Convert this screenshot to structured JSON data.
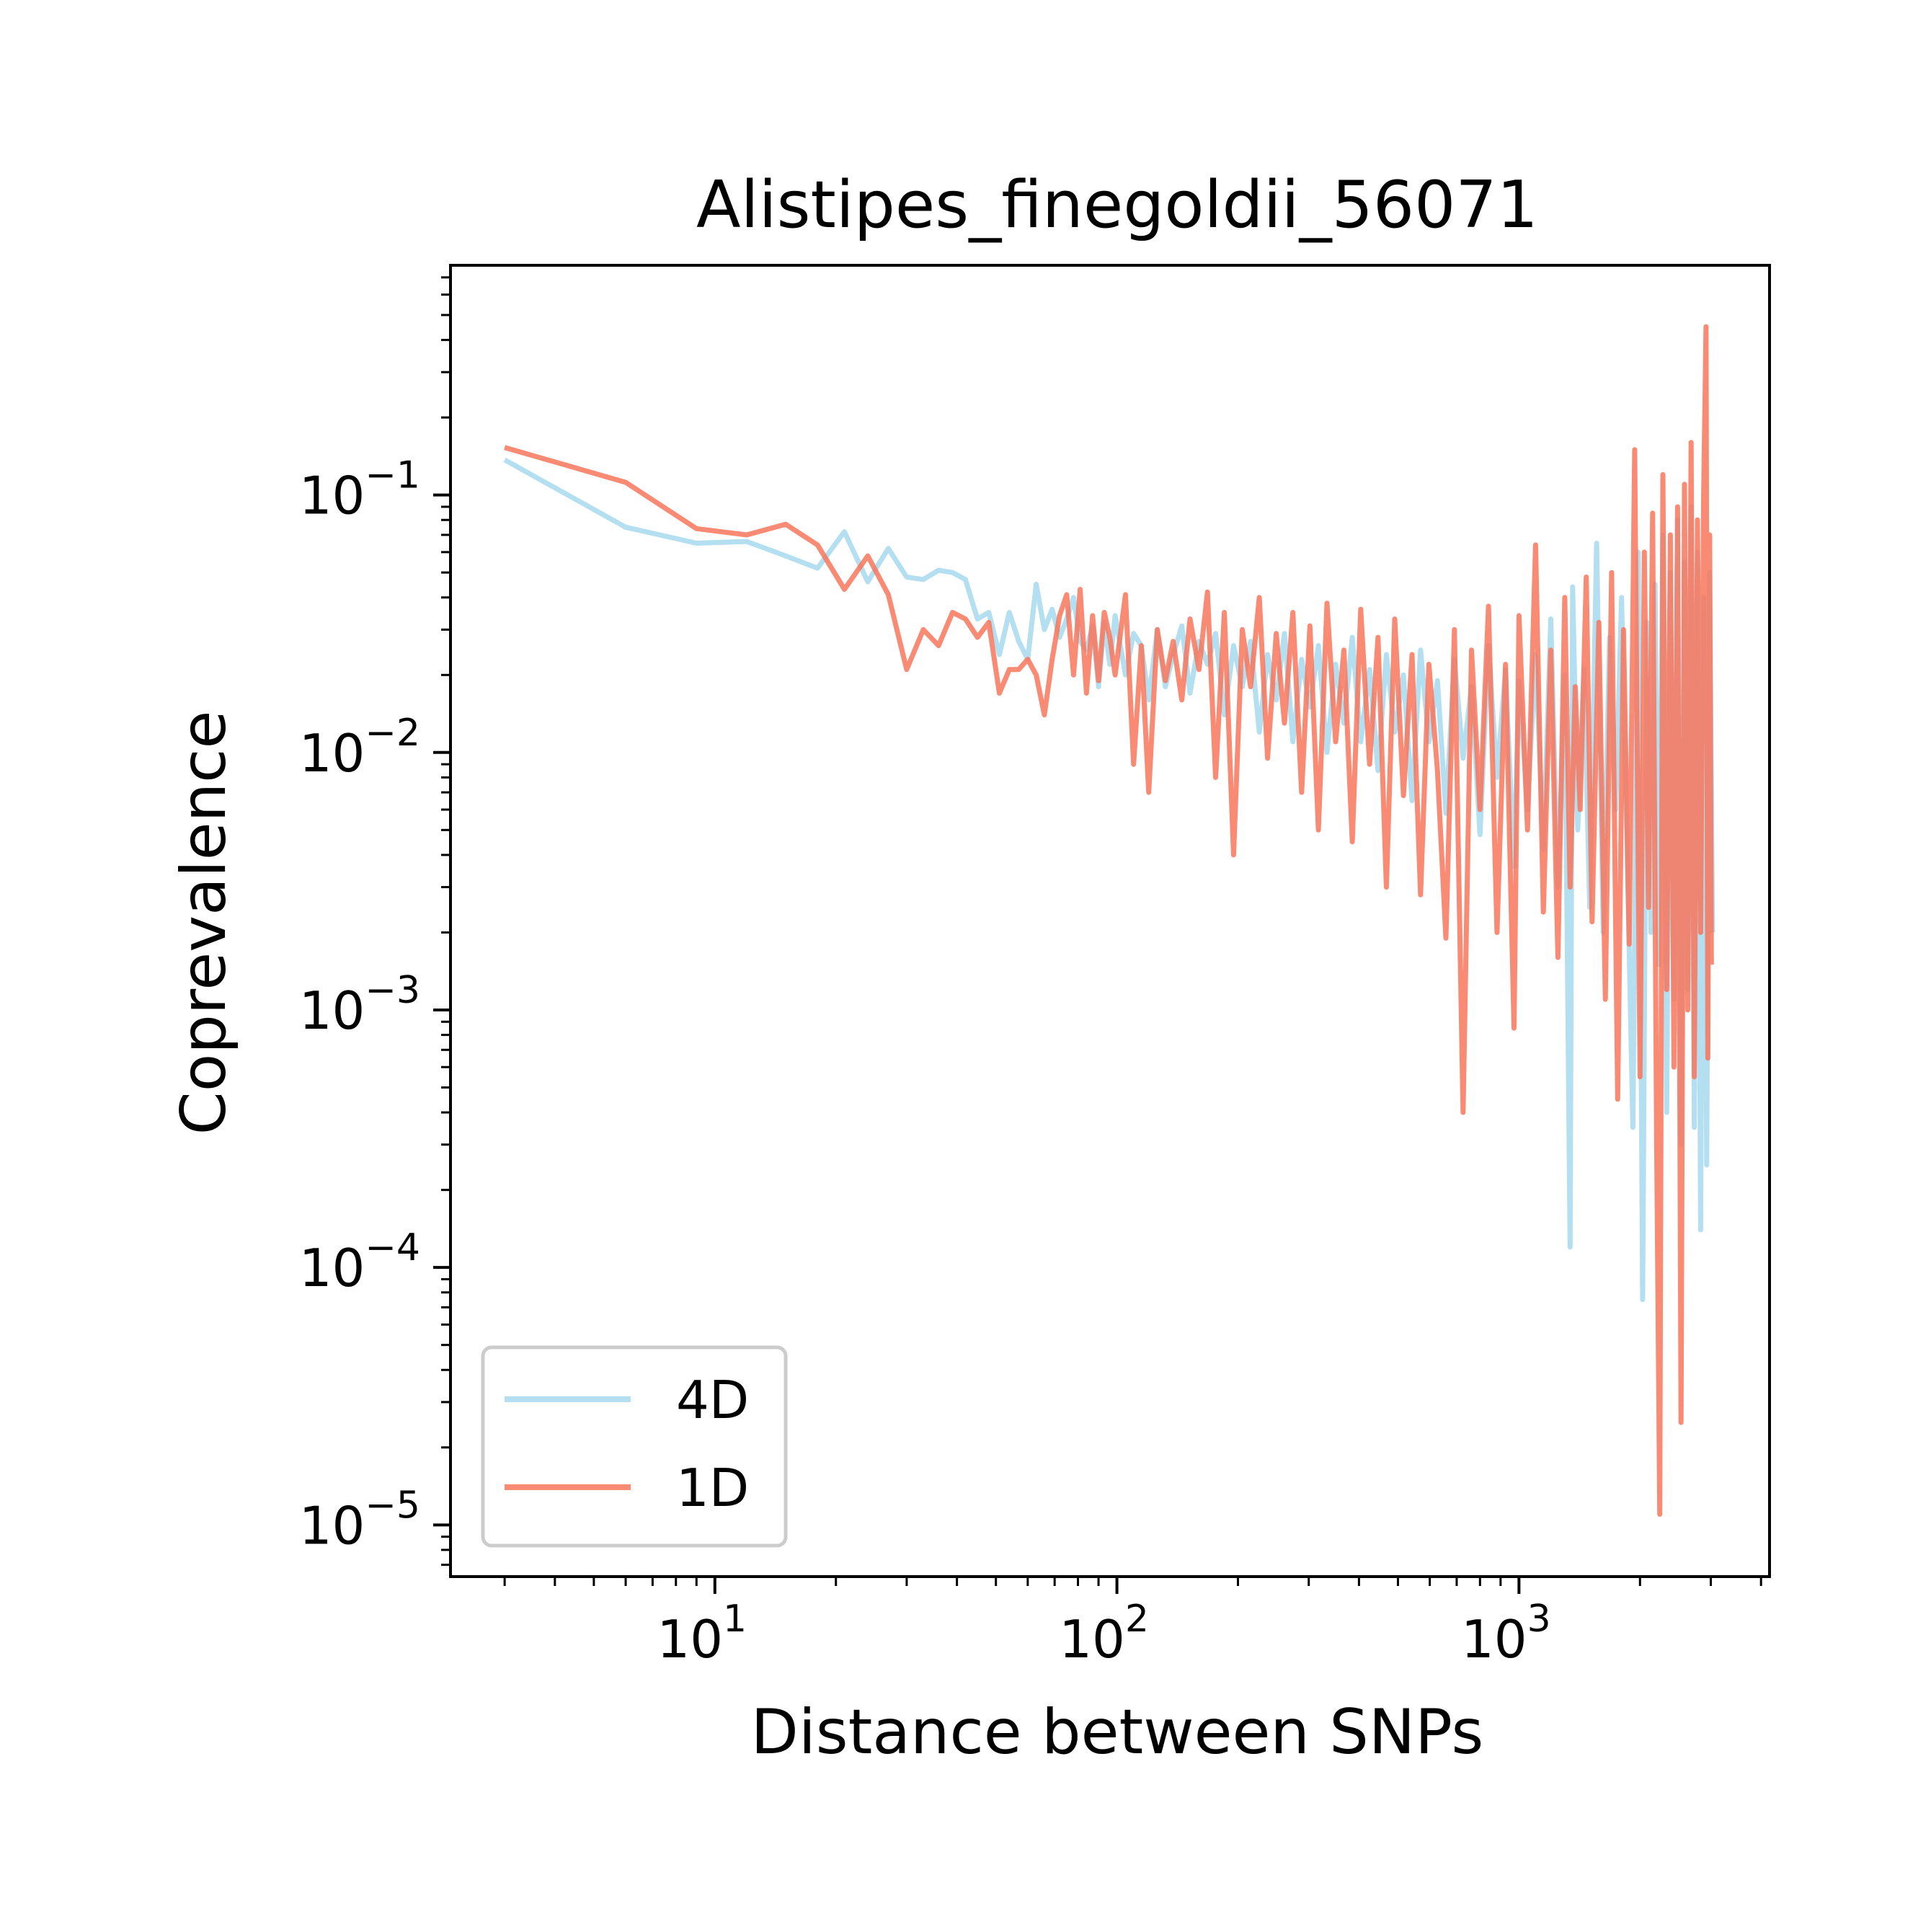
{
  "chart_data": {
    "type": "line",
    "title": "Alistipes_finegoldii_56071",
    "xlabel": "Distance between SNPs",
    "ylabel": "Coprevalence",
    "xscale": "log",
    "yscale": "log",
    "xlim": [
      2.2,
      4200
    ],
    "ylim": [
      6.3e-06,
      0.78
    ],
    "grid": false,
    "legend_position": "lower-left",
    "x_ticks": [
      {
        "value": 10,
        "base": "10",
        "exp": "1"
      },
      {
        "value": 100,
        "base": "10",
        "exp": "2"
      },
      {
        "value": 1000,
        "base": "10",
        "exp": "3"
      }
    ],
    "y_ticks": [
      {
        "value": 0.1,
        "base": "10",
        "exp": "−1"
      },
      {
        "value": 0.01,
        "base": "10",
        "exp": "−2"
      },
      {
        "value": 0.001,
        "base": "10",
        "exp": "−3"
      },
      {
        "value": 0.0001,
        "base": "10",
        "exp": "−4"
      },
      {
        "value": 1e-05,
        "base": "10",
        "exp": "−5"
      }
    ],
    "series": [
      {
        "name": "4D",
        "color": "#a6d9ee",
        "points": [
          [
            3,
            0.137
          ],
          [
            6,
            0.075
          ],
          [
            9,
            0.065
          ],
          [
            12,
            0.066
          ],
          [
            15,
            0.058
          ],
          [
            18,
            0.052
          ],
          [
            21,
            0.072
          ],
          [
            24,
            0.046
          ],
          [
            27,
            0.062
          ],
          [
            30,
            0.048
          ],
          [
            33,
            0.047
          ],
          [
            36,
            0.051
          ],
          [
            39,
            0.05
          ],
          [
            42,
            0.047
          ],
          [
            45,
            0.033
          ],
          [
            48,
            0.035
          ],
          [
            51,
            0.024
          ],
          [
            54,
            0.035
          ],
          [
            57,
            0.027
          ],
          [
            60,
            0.023
          ],
          [
            63,
            0.045
          ],
          [
            66,
            0.03
          ],
          [
            69,
            0.036
          ],
          [
            72,
            0.028
          ],
          [
            75,
            0.033
          ],
          [
            78,
            0.04
          ],
          [
            81,
            0.027
          ],
          [
            84,
            0.025
          ],
          [
            87,
            0.031
          ],
          [
            90,
            0.018
          ],
          [
            93,
            0.032
          ],
          [
            96,
            0.022
          ],
          [
            99,
            0.034
          ],
          [
            105,
            0.02
          ],
          [
            110,
            0.029
          ],
          [
            115,
            0.026
          ],
          [
            120,
            0.016
          ],
          [
            126,
            0.03
          ],
          [
            132,
            0.018
          ],
          [
            138,
            0.024
          ],
          [
            145,
            0.031
          ],
          [
            152,
            0.017
          ],
          [
            160,
            0.027
          ],
          [
            168,
            0.022
          ],
          [
            176,
            0.029
          ],
          [
            185,
            0.014
          ],
          [
            195,
            0.026
          ],
          [
            205,
            0.018
          ],
          [
            215,
            0.027
          ],
          [
            226,
            0.012
          ],
          [
            237,
            0.024
          ],
          [
            249,
            0.016
          ],
          [
            261,
            0.029
          ],
          [
            274,
            0.011
          ],
          [
            288,
            0.023
          ],
          [
            302,
            0.015
          ],
          [
            317,
            0.026
          ],
          [
            333,
            0.01
          ],
          [
            350,
            0.022
          ],
          [
            367,
            0.013
          ],
          [
            385,
            0.028
          ],
          [
            404,
            0.011
          ],
          [
            425,
            0.021
          ],
          [
            446,
            0.0085
          ],
          [
            468,
            0.024
          ],
          [
            491,
            0.012
          ],
          [
            516,
            0.02
          ],
          [
            542,
            0.0065
          ],
          [
            569,
            0.025
          ],
          [
            597,
            0.011
          ],
          [
            627,
            0.019
          ],
          [
            658,
            0.0058
          ],
          [
            691,
            0.023
          ],
          [
            726,
            0.0095
          ],
          [
            762,
            0.018
          ],
          [
            800,
            0.0048
          ],
          [
            840,
            0.026
          ],
          [
            882,
            0.008
          ],
          [
            926,
            0.021
          ],
          [
            972,
            0.0036
          ],
          [
            1000,
            0.019
          ],
          [
            1050,
            0.006
          ],
          [
            1100,
            0.024
          ],
          [
            1150,
            0.0042
          ],
          [
            1200,
            0.033
          ],
          [
            1250,
            0.003
          ],
          [
            1300,
            0.02
          ],
          [
            1340,
            0.00012
          ],
          [
            1360,
            0.044
          ],
          [
            1400,
            0.005
          ],
          [
            1450,
            0.021
          ],
          [
            1500,
            0.0025
          ],
          [
            1560,
            0.065
          ],
          [
            1620,
            0.002
          ],
          [
            1680,
            0.028
          ],
          [
            1740,
            0.006
          ],
          [
            1800,
            0.04
          ],
          [
            1860,
            0.0038
          ],
          [
            1920,
            0.00035
          ],
          [
            1980,
            0.06
          ],
          [
            2030,
            7.5e-05
          ],
          [
            2080,
            0.032
          ],
          [
            2130,
            0.002
          ],
          [
            2180,
            0.045
          ],
          [
            2230,
            0.0015
          ],
          [
            2280,
            0.07
          ],
          [
            2330,
            0.0004
          ],
          [
            2380,
            0.05
          ],
          [
            2430,
            0.0011
          ],
          [
            2480,
            0.08
          ],
          [
            2530,
            0.0003
          ],
          [
            2580,
            0.055
          ],
          [
            2630,
            0.0012
          ],
          [
            2680,
            0.09
          ],
          [
            2730,
            0.00035
          ],
          [
            2780,
            0.06
          ],
          [
            2830,
            0.00014
          ],
          [
            2880,
            0.04
          ],
          [
            2930,
            0.00025
          ],
          [
            2980,
            0.05
          ],
          [
            3030,
            0.002
          ]
        ]
      },
      {
        "name": "1D",
        "color": "#f8765c",
        "points": [
          [
            3,
            0.153
          ],
          [
            6,
            0.112
          ],
          [
            9,
            0.074
          ],
          [
            12,
            0.07
          ],
          [
            15,
            0.077
          ],
          [
            18,
            0.064
          ],
          [
            21,
            0.043
          ],
          [
            24,
            0.058
          ],
          [
            27,
            0.041
          ],
          [
            30,
            0.021
          ],
          [
            33,
            0.03
          ],
          [
            36,
            0.026
          ],
          [
            39,
            0.035
          ],
          [
            42,
            0.033
          ],
          [
            45,
            0.028
          ],
          [
            48,
            0.032
          ],
          [
            51,
            0.017
          ],
          [
            54,
            0.021
          ],
          [
            57,
            0.021
          ],
          [
            60,
            0.023
          ],
          [
            63,
            0.02
          ],
          [
            66,
            0.014
          ],
          [
            69,
            0.023
          ],
          [
            72,
            0.034
          ],
          [
            75,
            0.041
          ],
          [
            78,
            0.02
          ],
          [
            81,
            0.043
          ],
          [
            84,
            0.017
          ],
          [
            87,
            0.034
          ],
          [
            90,
            0.019
          ],
          [
            93,
            0.035
          ],
          [
            96,
            0.028
          ],
          [
            99,
            0.02
          ],
          [
            105,
            0.041
          ],
          [
            110,
            0.009
          ],
          [
            115,
            0.026
          ],
          [
            120,
            0.007
          ],
          [
            126,
            0.03
          ],
          [
            132,
            0.019
          ],
          [
            138,
            0.027
          ],
          [
            145,
            0.016
          ],
          [
            152,
            0.033
          ],
          [
            160,
            0.021
          ],
          [
            168,
            0.042
          ],
          [
            176,
            0.008
          ],
          [
            185,
            0.035
          ],
          [
            195,
            0.004
          ],
          [
            205,
            0.03
          ],
          [
            215,
            0.018
          ],
          [
            226,
            0.04
          ],
          [
            237,
            0.0095
          ],
          [
            249,
            0.029
          ],
          [
            261,
            0.013
          ],
          [
            274,
            0.035
          ],
          [
            288,
            0.007
          ],
          [
            302,
            0.031
          ],
          [
            317,
            0.005
          ],
          [
            333,
            0.038
          ],
          [
            350,
            0.011
          ],
          [
            367,
            0.025
          ],
          [
            385,
            0.0045
          ],
          [
            404,
            0.036
          ],
          [
            425,
            0.009
          ],
          [
            446,
            0.028
          ],
          [
            468,
            0.003
          ],
          [
            491,
            0.033
          ],
          [
            516,
            0.0068
          ],
          [
            542,
            0.024
          ],
          [
            569,
            0.0028
          ],
          [
            597,
            0.022
          ],
          [
            627,
            0.0085
          ],
          [
            658,
            0.0019
          ],
          [
            691,
            0.03
          ],
          [
            726,
            0.0004
          ],
          [
            762,
            0.025
          ],
          [
            800,
            0.006
          ],
          [
            840,
            0.037
          ],
          [
            882,
            0.002
          ],
          [
            926,
            0.022
          ],
          [
            972,
            0.00085
          ],
          [
            1000,
            0.034
          ],
          [
            1050,
            0.005
          ],
          [
            1100,
            0.064
          ],
          [
            1150,
            0.0024
          ],
          [
            1200,
            0.025
          ],
          [
            1250,
            0.0016
          ],
          [
            1300,
            0.04
          ],
          [
            1340,
            0.003
          ],
          [
            1380,
            0.018
          ],
          [
            1420,
            0.006
          ],
          [
            1470,
            0.048
          ],
          [
            1520,
            0.0022
          ],
          [
            1580,
            0.032
          ],
          [
            1640,
            0.0011
          ],
          [
            1700,
            0.05
          ],
          [
            1760,
            0.00045
          ],
          [
            1820,
            0.03
          ],
          [
            1880,
            0.0018
          ],
          [
            1940,
            0.15
          ],
          [
            2000,
            0.00055
          ],
          [
            2050,
            0.06
          ],
          [
            2100,
            0.0025
          ],
          [
            2150,
            0.085
          ],
          [
            2200,
            0.0003
          ],
          [
            2240,
            1.1e-05
          ],
          [
            2280,
            0.12
          ],
          [
            2330,
            0.0012
          ],
          [
            2380,
            0.07
          ],
          [
            2430,
            0.0006
          ],
          [
            2480,
            0.09
          ],
          [
            2530,
            2.5e-05
          ],
          [
            2580,
            0.11
          ],
          [
            2630,
            0.001
          ],
          [
            2680,
            0.16
          ],
          [
            2730,
            0.00055
          ],
          [
            2780,
            0.08
          ],
          [
            2830,
            0.002
          ],
          [
            2880,
            0.1
          ],
          [
            2920,
            0.45
          ],
          [
            2950,
            0.00065
          ],
          [
            2980,
            0.07
          ],
          [
            3010,
            0.0015
          ]
        ]
      }
    ]
  }
}
